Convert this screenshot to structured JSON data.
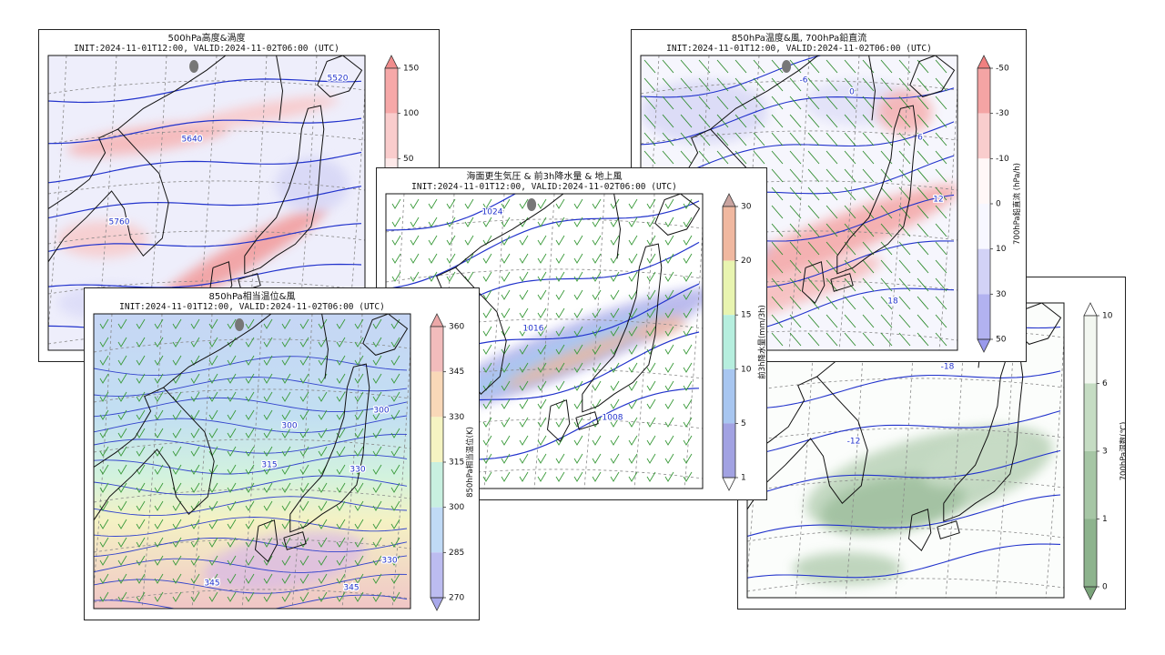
{
  "panels": [
    {
      "title": "500hPa高度&渦度",
      "subtitle": "INIT:2024-11-01T12:00, VALID:2024-11-02T06:00 (UTC)",
      "colorbar": {
        "ticks": [
          150,
          100,
          50
        ],
        "colors": [
          "#f08c8c",
          "#f6a8a8",
          "#f9cccc",
          "#fde9e9",
          "#ececfa",
          "#d0d0f6",
          "#b4b4f0",
          "#9a9aea"
        ]
      },
      "contour_labels": [
        "5520",
        "5640",
        "5760"
      ]
    },
    {
      "colorbar": {
        "ticks": [
          10,
          6,
          3,
          1,
          0
        ],
        "label": "700hPa湿数(℃)",
        "colors": [
          "#ffffff",
          "#f3f7f1",
          "#c5dcc3",
          "#a6c6a5",
          "#8db38d",
          "#7aa47a"
        ]
      },
      "contour_labels": [
        "-18",
        "-12"
      ]
    },
    {
      "title": "850hPa温度&風, 700hPa鉛直流",
      "subtitle": "INIT:2024-11-01T12:00, VALID:2024-11-02T06:00 (UTC)",
      "colorbar": {
        "ticks": [
          -50,
          -30,
          -10,
          0,
          10,
          30,
          50
        ],
        "label": "700hPa鉛直流 (hPa/h)",
        "colors": [
          "#f08080",
          "#f4a4a4",
          "#f9cdcd",
          "#fff7f7",
          "#f7f7ff",
          "#d2d2f6",
          "#b2b2f0",
          "#9999ec"
        ]
      },
      "contour_labels": [
        "-6",
        "0",
        "6",
        "12",
        "18"
      ]
    },
    {
      "title": "海面更生気圧 & 前3h降水量 & 地上風",
      "subtitle": "INIT:2024-11-01T12:00, VALID:2024-11-02T06:00 (UTC)",
      "colorbar": {
        "ticks": [
          30,
          20,
          15,
          10,
          5,
          1
        ],
        "label": "前3h降水量(mm/3h)",
        "colors": [
          "#c9a4a0",
          "#f0b8a0",
          "#e8f4b0",
          "#b6eede",
          "#a8c6f0",
          "#a2a2e2",
          "#ffffff"
        ]
      },
      "contour_labels": [
        "1024",
        "1016",
        "1008"
      ]
    },
    {
      "title": "850hPa相当温位&風",
      "subtitle": "INIT:2024-11-01T12:00, VALID:2024-11-02T06:00 (UTC)",
      "colorbar": {
        "ticks": [
          360,
          345,
          330,
          315,
          300,
          285,
          270
        ],
        "label": "850hPa相当温位(K)",
        "colors": [
          "#eca8a8",
          "#f2bcbc",
          "#f9d8b8",
          "#f5f4c2",
          "#c8f0e0",
          "#c0daf6",
          "#bcbcf0",
          "#a8a8ea"
        ]
      },
      "contour_labels": [
        "300",
        "300",
        "315",
        "330",
        "345",
        "345",
        "330"
      ]
    }
  ]
}
